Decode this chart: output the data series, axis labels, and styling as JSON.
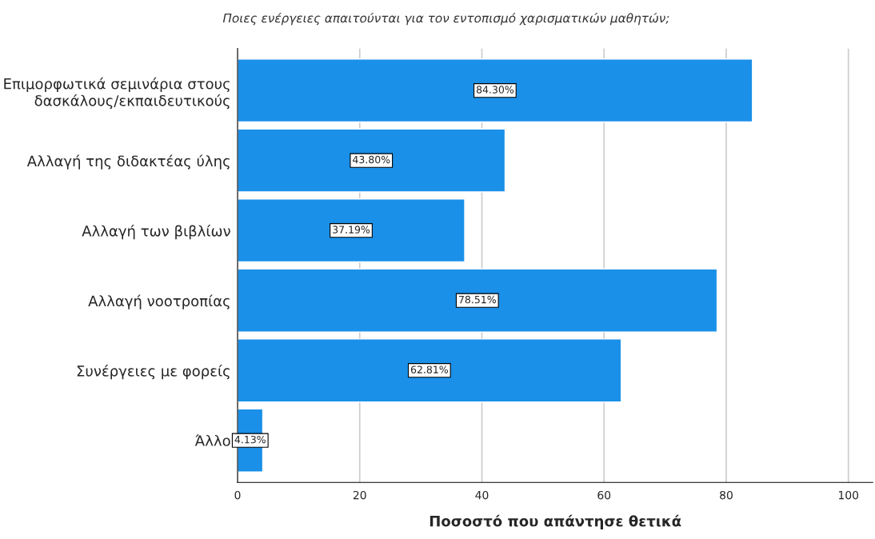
{
  "chart_data": {
    "type": "bar",
    "orientation": "horizontal",
    "title": "Ποιες ενέργειες απαιτούνται για τον εντοπισμό χαρισματικών μαθητών;",
    "xlabel": "Ποσοστό που απάντησε θετικά",
    "categories": [
      "Επιμορφωτικά σεμινάρια στους\nδασκάλους/εκπαιδευτικούς",
      "Αλλαγή της διδακτέας ύλης",
      "Αλλαγή των βιβλίων",
      "Αλλαγή νοοτροπίας",
      "Συνέργειες με φορείς",
      "Άλλο"
    ],
    "values": [
      84.3,
      43.8,
      37.19,
      78.51,
      62.81,
      4.13
    ],
    "value_labels": [
      "84.30%",
      "43.80%",
      "37.19%",
      "78.51%",
      "62.81%",
      "4.13%"
    ],
    "color": "#1a90e8",
    "xlim": [
      0,
      104
    ],
    "xticks": [
      0,
      20,
      40,
      60,
      80,
      100
    ],
    "grid": "x"
  }
}
